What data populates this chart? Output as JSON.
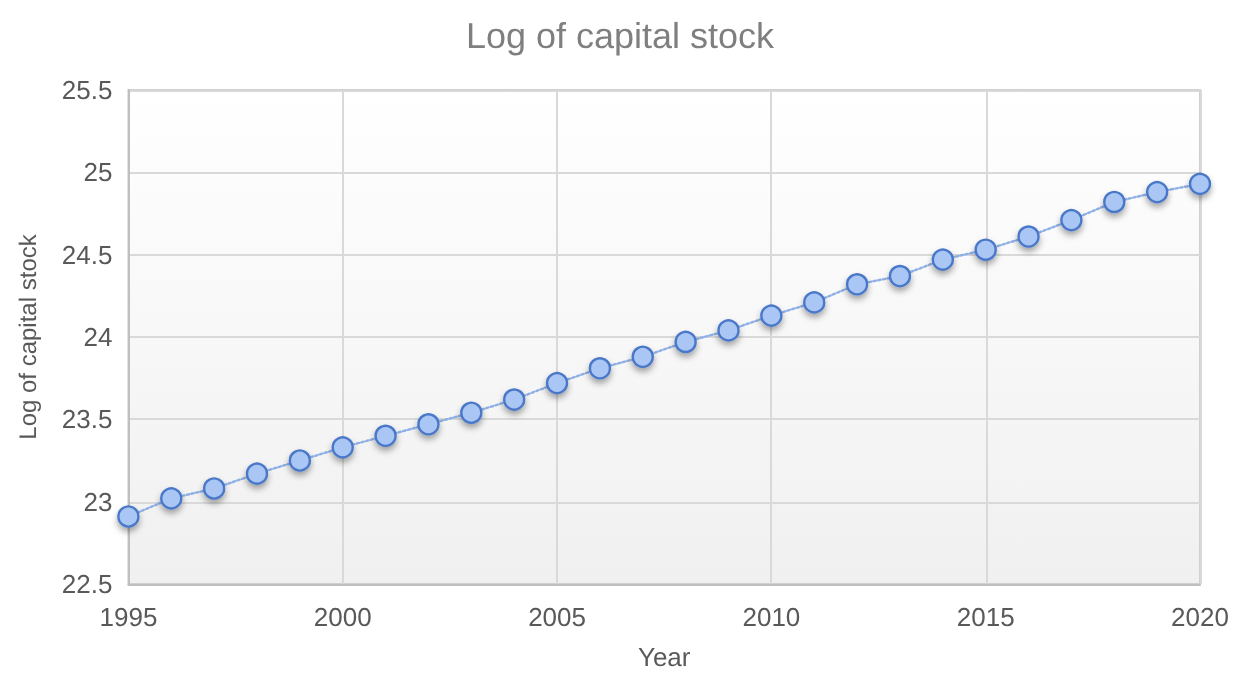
{
  "chart_data": {
    "type": "line",
    "title": "Log of capital stock",
    "xlabel": "Year",
    "ylabel": "Log of capital stock",
    "x": [
      1995,
      1996,
      1997,
      1998,
      1999,
      2000,
      2001,
      2002,
      2003,
      2004,
      2005,
      2006,
      2007,
      2008,
      2009,
      2010,
      2011,
      2012,
      2013,
      2014,
      2015,
      2016,
      2017,
      2018,
      2019,
      2020
    ],
    "series": [
      {
        "color": "#a9c6f5",
        "values": [
          22.91,
          23.02,
          23.08,
          23.17,
          23.25,
          23.33,
          23.4,
          23.47,
          23.54,
          23.62,
          23.72,
          23.81,
          23.88,
          23.97,
          24.04,
          24.13,
          24.21,
          24.32,
          24.37,
          24.47,
          24.53,
          24.61,
          24.71,
          24.82,
          24.88,
          24.93
        ]
      }
    ],
    "xlim": [
      1995,
      2020
    ],
    "xticks": [
      1995,
      2000,
      2005,
      2010,
      2015,
      2020
    ],
    "ylim": [
      22.5,
      25.5
    ],
    "yticks": [
      22.5,
      23,
      23.5,
      24,
      24.5,
      25,
      25.5
    ],
    "grid": true,
    "marker": "circle",
    "line_style": "dotted"
  }
}
